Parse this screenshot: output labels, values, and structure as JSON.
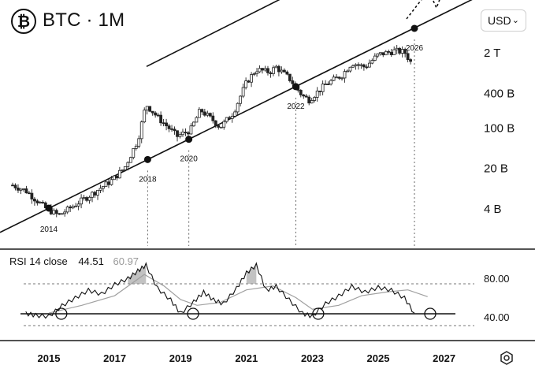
{
  "header": {
    "logo_glyph": "₿",
    "title": "BTC · 1M",
    "currency": "USD",
    "currency_icon": "chevron-down-icon"
  },
  "chart_data": [
    {
      "type": "candlestick",
      "title": "BTC · 1M",
      "y_scale": "log",
      "yticks": [
        "2 T",
        "400 B",
        "100 B",
        "20 B",
        "4 B"
      ],
      "ytick_values": [
        2000000000000,
        400000000000,
        100000000000,
        20000000000,
        4000000000
      ],
      "price_series_approx": {
        "x": [
          2013.9,
          2014.3,
          2014.9,
          2015.3,
          2015.9,
          2016.3,
          2016.9,
          2017.3,
          2017.7,
          2017.95,
          2018.3,
          2018.9,
          2019.3,
          2019.6,
          2020.0,
          2020.2,
          2020.6,
          2021.0,
          2021.3,
          2021.7,
          2021.9,
          2022.3,
          2022.7,
          2022.9,
          2023.4,
          2023.9,
          2024.2,
          2024.6,
          2025.0,
          2025.5,
          2025.8,
          2026.0
        ],
        "y": [
          10000000000,
          8000000000,
          4000000000,
          3000000000,
          5000000000,
          7000000000,
          12000000000,
          20000000000,
          60000000000,
          250000000000,
          150000000000,
          70000000000,
          90000000000,
          200000000000,
          130000000000,
          100000000000,
          180000000000,
          600000000000,
          1000000000000,
          900000000000,
          1100000000000,
          700000000000,
          350000000000,
          300000000000,
          550000000000,
          800000000000,
          1300000000000,
          1100000000000,
          1800000000000,
          2100000000000,
          2000000000000,
          1300000000000
        ]
      },
      "annotations": [
        {
          "label": "2014",
          "x": 2015.0
        },
        {
          "label": "2018",
          "x": 2018.0
        },
        {
          "label": "2020",
          "x": 2019.25
        },
        {
          "label": "2022",
          "x": 2022.5
        },
        {
          "label": "2026",
          "x": 2026.1
        }
      ],
      "channel": "upward parallel channel with dashed projected arrow"
    },
    {
      "type": "line",
      "title": "RSI 14 close",
      "legend": "RSI 14 close",
      "values_shown": [
        "44.51",
        "60.97"
      ],
      "yticks": [
        "80.00",
        "40.00"
      ],
      "ytick_values": [
        80,
        40
      ],
      "levels": [
        80,
        40
      ],
      "xticks": [
        "2015",
        "2017",
        "2019",
        "2021",
        "2023",
        "2025",
        "2027"
      ],
      "xtick_values": [
        2015,
        2017,
        2019,
        2021,
        2023,
        2025,
        2027
      ],
      "series": [
        {
          "x": [
            2014.3,
            2014.6,
            2015.0,
            2015.4,
            2015.8,
            2016.2,
            2016.6,
            2017.0,
            2017.4,
            2017.7,
            2017.95,
            2018.3,
            2018.7,
            2019.0,
            2019.4,
            2019.7,
            2020.0,
            2020.3,
            2020.7,
            2021.0,
            2021.3,
            2021.6,
            2021.9,
            2022.3,
            2022.7,
            2023.0,
            2023.4,
            2023.8,
            2024.2,
            2024.6,
            2025.0,
            2025.4,
            2025.8,
            2026.1
          ],
          "y": [
            44,
            42,
            41,
            52,
            60,
            68,
            64,
            74,
            80,
            88,
            94,
            70,
            58,
            44,
            56,
            66,
            58,
            54,
            70,
            86,
            94,
            68,
            72,
            58,
            44,
            41,
            54,
            62,
            72,
            66,
            71,
            68,
            60,
            44
          ]
        },
        {
          "x": [
            2015.0,
            2016.0,
            2017.0,
            2017.9,
            2018.5,
            2019.0,
            2019.5,
            2020.2,
            2021.0,
            2021.8,
            2022.5,
            2023.0,
            2023.8,
            2024.5,
            2025.3,
            2025.9,
            2026.5
          ],
          "y": [
            44,
            52,
            62,
            84,
            72,
            58,
            52,
            55,
            68,
            72,
            60,
            48,
            52,
            62,
            66,
            68,
            61
          ]
        }
      ],
      "circled_x": [
        2014.9,
        2018.9,
        2022.7,
        2026.1
      ]
    }
  ],
  "footer": {
    "settings_icon": "hexagon-settings-icon"
  }
}
